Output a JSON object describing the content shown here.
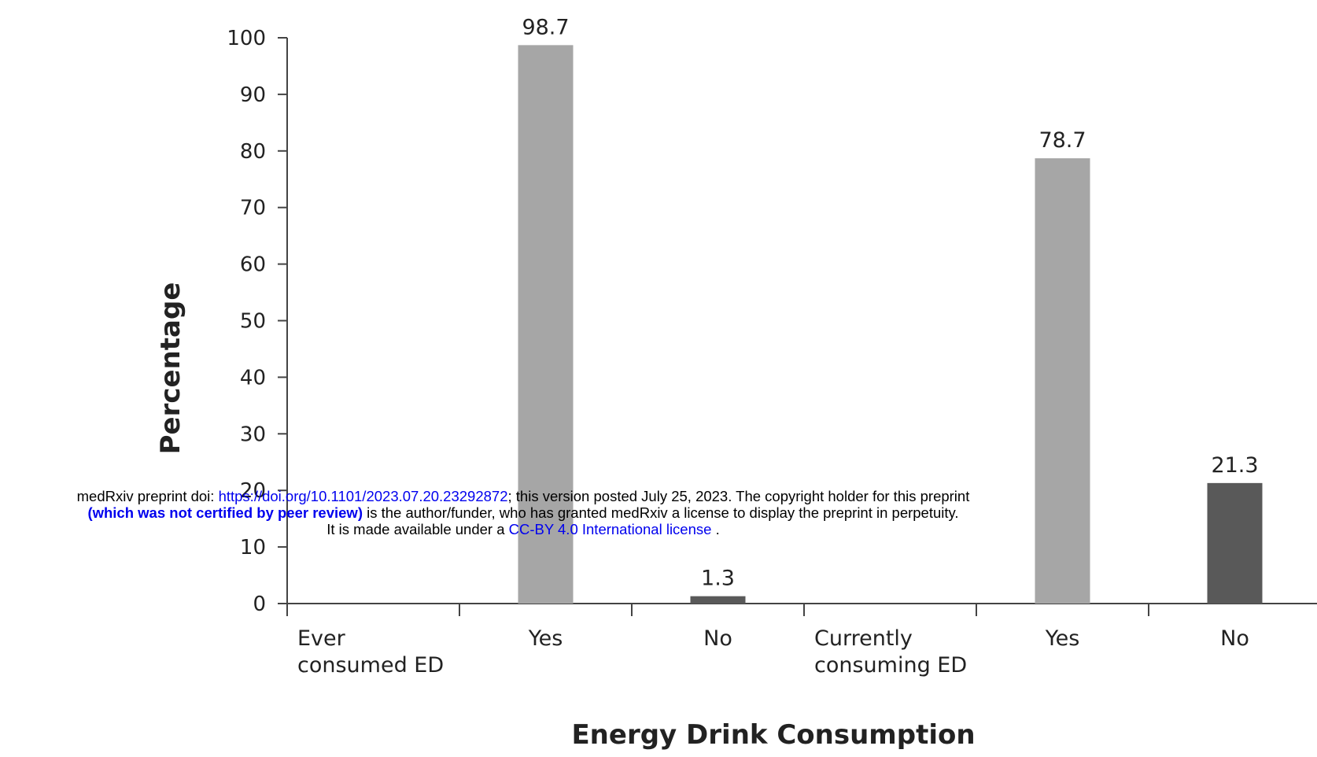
{
  "chart_data": {
    "type": "bar",
    "categories": [
      "Ever\nconsumed ED",
      "Yes",
      "No",
      "Currently\nconsuming ED",
      "Yes",
      "No"
    ],
    "values": [
      null,
      98.7,
      1.3,
      null,
      78.7,
      21.3
    ],
    "value_labels": [
      "",
      "98.7",
      "1.3",
      "",
      "78.7",
      "21.3"
    ],
    "bar_colors": [
      "#a6a6a6",
      "#a6a6a6",
      "#595959",
      "#a6a6a6",
      "#a6a6a6",
      "#595959"
    ],
    "xlabel": "Energy Drink Consumption",
    "ylabel": "Percentage",
    "ylim": [
      0,
      100
    ],
    "yticks": [
      0,
      10,
      20,
      30,
      40,
      50,
      60,
      70,
      80,
      90,
      100
    ],
    "grid": false
  },
  "watermark": {
    "line1_prefix": "medRxiv preprint doi: ",
    "line1_link": "https://doi.org/10.1101/2023.07.20.23292872",
    "line1_suffix": "; this version posted July 25, 2023. The copyright holder for this preprint",
    "line2_bold": "(which was not certified by peer review)",
    "line2_suffix": " is the author/funder, who has granted medRxiv a license to display the preprint in perpetuity.",
    "line3_prefix": "It is made available under a ",
    "line3_link": "CC-BY 4.0 International license",
    "line3_suffix": " ."
  }
}
